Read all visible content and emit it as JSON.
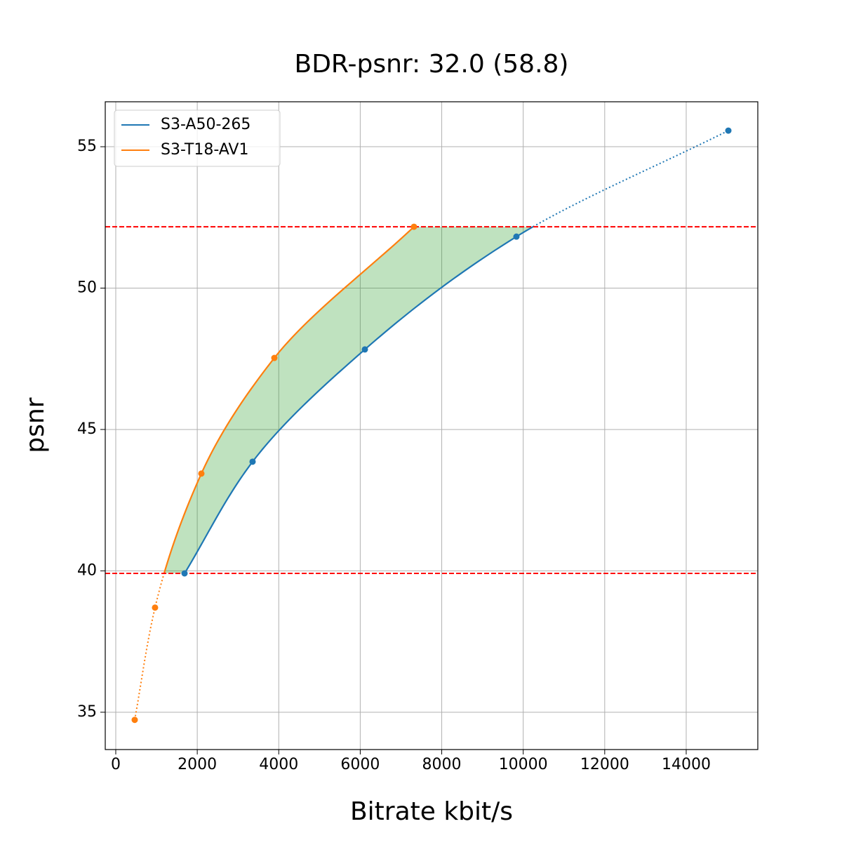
{
  "chart_data": {
    "type": "line",
    "title": "BDR-psnr: 32.0 (58.8)",
    "x_label": "Bitrate kbit/s",
    "y_label": "psnr",
    "series": [
      {
        "name": "S3-A50-265",
        "color": "#1f77b4",
        "x": [
          1688,
          3358,
          6113,
          9833,
          15034
        ],
        "values": [
          39.91,
          43.86,
          47.83,
          51.82,
          55.57
        ]
      },
      {
        "name": "S3-T18-AV1",
        "color": "#ff7f0e",
        "x": [
          465,
          964,
          2101,
          3892,
          7319
        ],
        "values": [
          34.73,
          38.7,
          43.44,
          47.53,
          52.17
        ]
      }
    ],
    "hlines": [
      52.17,
      39.91
    ],
    "hline_color": "#ff0000",
    "fill_color": "#2ca02c",
    "xlim": [
      -258,
      15757
    ],
    "ylim": [
      33.68,
      56.59
    ],
    "xticks": [
      0,
      2000,
      4000,
      6000,
      8000,
      10000,
      12000,
      14000
    ],
    "yticks": [
      35,
      40,
      45,
      50,
      55
    ],
    "grid": true,
    "legend": "upper left"
  }
}
